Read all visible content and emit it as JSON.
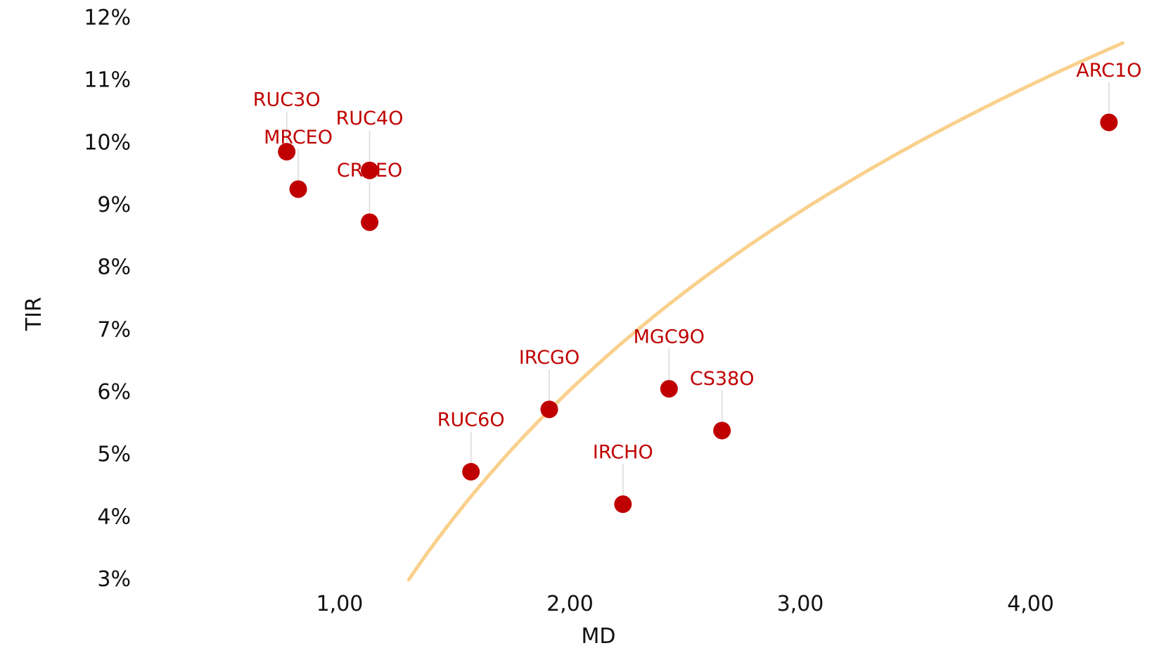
{
  "chart_data": {
    "type": "scatter",
    "xlabel": "MD",
    "ylabel": "TIR",
    "xlim": [
      0.05,
      4.6
    ],
    "ylim": [
      3,
      12
    ],
    "x_ticks": [
      1,
      2,
      3,
      4
    ],
    "x_tick_labels": [
      "1,00",
      "2,00",
      "3,00",
      "4,00"
    ],
    "y_ticks": [
      3,
      4,
      5,
      6,
      7,
      8,
      9,
      10,
      11,
      12
    ],
    "y_tick_labels": [
      "3%",
      "4%",
      "5%",
      "6%",
      "7%",
      "8%",
      "9%",
      "10%",
      "11%",
      "12%"
    ],
    "grid": false,
    "legend": "none",
    "point_color": "#c00000",
    "trend_color": "#f9d08c",
    "trendline": {
      "type": "logarithmic",
      "x_range": [
        1.3,
        4.4
      ],
      "points": [
        [
          1.3,
          3.0
        ],
        [
          2.3,
          7.0
        ],
        [
          4.4,
          11.6
        ]
      ]
    },
    "points": [
      {
        "label": "RUC3O",
        "x": 0.77,
        "y": 9.85
      },
      {
        "label": "MRCEO",
        "x": 0.82,
        "y": 9.25
      },
      {
        "label": "RUC4O",
        "x": 1.13,
        "y": 9.55
      },
      {
        "label": "CRCEO",
        "x": 1.13,
        "y": 8.72
      },
      {
        "label": "RUC6O",
        "x": 1.57,
        "y": 4.72
      },
      {
        "label": "IRCGO",
        "x": 1.91,
        "y": 5.72
      },
      {
        "label": "IRCHO",
        "x": 2.23,
        "y": 4.2
      },
      {
        "label": "MGC9O",
        "x": 2.43,
        "y": 6.05
      },
      {
        "label": "CS38O",
        "x": 2.66,
        "y": 5.38
      },
      {
        "label": "ARC1O",
        "x": 4.34,
        "y": 10.32
      }
    ]
  }
}
